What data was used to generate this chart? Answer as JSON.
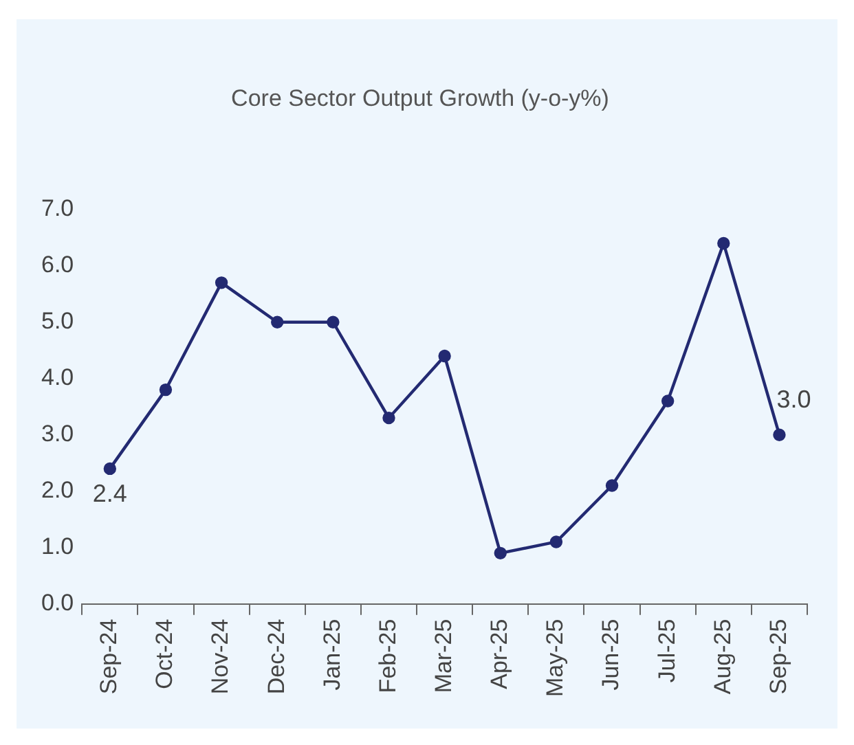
{
  "chart_data": {
    "type": "line",
    "title": "Core Sector Output Growth (y-o-y%)",
    "categories": [
      "Sep-24",
      "Oct-24",
      "Nov-24",
      "Dec-24",
      "Jan-25",
      "Feb-25",
      "Mar-25",
      "Apr-25",
      "May-25",
      "Jun-25",
      "Jul-25",
      "Aug-25",
      "Sep-25"
    ],
    "series": [
      {
        "color": "#232a72",
        "values": [
          2.4,
          3.8,
          5.7,
          5.0,
          5.0,
          3.3,
          4.4,
          0.9,
          1.1,
          2.1,
          3.6,
          6.4,
          3.0
        ],
        "value_labels": [
          "2.4",
          null,
          null,
          null,
          null,
          null,
          null,
          null,
          null,
          null,
          null,
          null,
          "3.0"
        ]
      }
    ],
    "ylim": [
      0,
      7
    ],
    "yticks": [
      {
        "value": 0,
        "label": "0.0"
      },
      {
        "value": 1,
        "label": "1.0"
      },
      {
        "value": 2,
        "label": "2.0"
      },
      {
        "value": 3,
        "label": "3.0"
      },
      {
        "value": 4,
        "label": "4.0"
      },
      {
        "value": 5,
        "label": "5.0"
      },
      {
        "value": 6,
        "label": "6.0"
      },
      {
        "value": 7,
        "label": "7.0"
      }
    ],
    "grid": false,
    "legend": false,
    "marker": "circle",
    "line_style": "solid"
  }
}
